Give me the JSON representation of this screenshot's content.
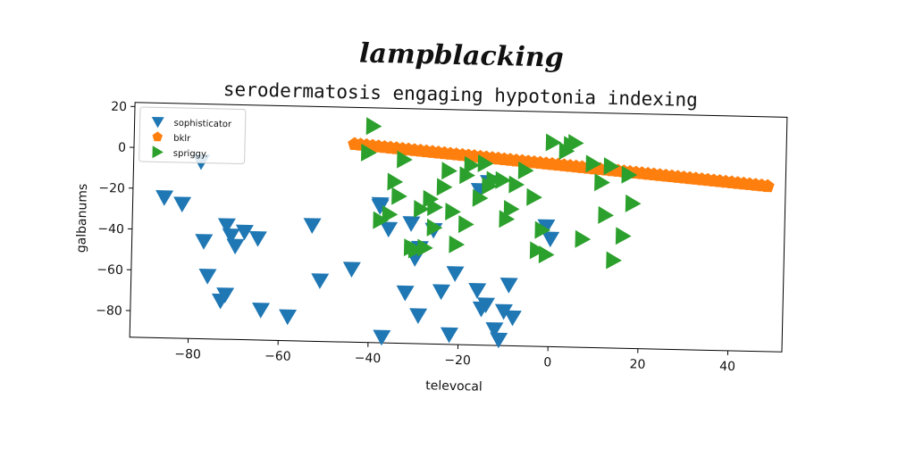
{
  "chart_data": {
    "type": "scatter",
    "suptitle": "lampblacking",
    "title": "serodermatosis engaging hypotonia indexing",
    "xlabel": "televocal",
    "ylabel": "galbanums",
    "xlim": [
      -93,
      52
    ],
    "ylim": [
      -93,
      22
    ],
    "xticks": [
      -80,
      -60,
      -40,
      -20,
      0,
      20,
      40
    ],
    "yticks": [
      20,
      0,
      -20,
      -40,
      -60,
      -80
    ],
    "grid": false,
    "legend_position": "top-left",
    "series": [
      {
        "name": "sophisticator",
        "marker": "triangle-down",
        "color": "#1f77b4",
        "x": [
          -86,
          -82,
          -78,
          -77,
          -76,
          -72,
          -73,
          -72,
          -71,
          -70,
          -68,
          -65,
          -64,
          -58,
          -53,
          -51,
          -44,
          -37,
          -38,
          -36,
          -32,
          -31,
          -30,
          -29,
          -26,
          -24,
          -22,
          -21,
          -16,
          -16,
          -15,
          -14,
          -14,
          -12,
          -11,
          -10,
          -9,
          -8,
          -1,
          0,
          -29,
          -38
        ],
        "y": [
          -24,
          -27,
          -6,
          -45,
          -62,
          -71,
          -74,
          -37,
          -42,
          -47,
          -40,
          -43,
          -78,
          -81,
          -36,
          -63,
          -57,
          -90,
          -25,
          -37,
          -68,
          -34,
          -51,
          -79,
          -37,
          -67,
          -88,
          -58,
          -17,
          -66,
          -75,
          -73,
          -13,
          -85,
          -90,
          -76,
          -63,
          -79,
          -34,
          -40,
          -46,
          -26
        ]
      },
      {
        "name": "bklr",
        "marker": "pentagon",
        "color": "#ff7f0e",
        "x": [
          -44,
          48
        ],
        "y": [
          4,
          -12
        ],
        "count": 70
      },
      {
        "name": "spriggy.",
        "marker": "triangle-right",
        "color": "#2ca02c",
        "x": [
          -40,
          -41,
          -35,
          -34,
          -31,
          -28,
          -26,
          -22,
          -21,
          -19,
          -18,
          -16,
          -14,
          -13,
          -10,
          -8,
          -6,
          -4,
          -2,
          -3,
          0,
          3,
          5,
          9,
          11,
          13,
          14,
          17,
          18,
          7,
          -1,
          -9,
          -23,
          -27,
          -29,
          -33,
          -36,
          -38,
          -24,
          -19,
          12,
          16,
          4,
          -11,
          -15,
          -30,
          -26
        ],
        "y": [
          13,
          0,
          -14,
          -21,
          -46,
          -46,
          -36,
          -28,
          -44,
          -10,
          -5,
          -21,
          -15,
          -12,
          -31,
          -14,
          -7,
          -20,
          -36,
          -46,
          7,
          3,
          7,
          -3,
          -12,
          -4,
          -50,
          -8,
          -22,
          -40,
          -48,
          -26,
          -8,
          -22,
          -27,
          -3,
          -30,
          -33,
          -16,
          -34,
          -28,
          -38,
          6,
          -12,
          -4,
          -47,
          -26
        ]
      }
    ]
  }
}
